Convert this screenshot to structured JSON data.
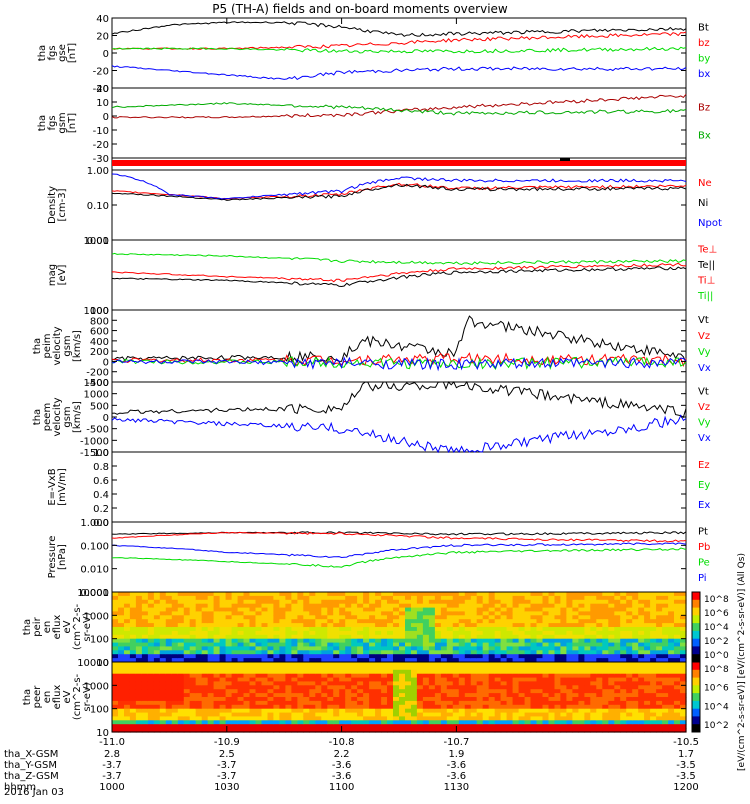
{
  "title": "P5 (TH-A) fields and on-board moments overview",
  "colors": {
    "black": "#000000",
    "red": "#ff0000",
    "green": "#00dd00",
    "blue": "#0000ff",
    "darkred": "#aa0000",
    "darkgreen": "#00aa00"
  },
  "time_axis": {
    "ticks": [
      "-11.0",
      "-10.9",
      "-10.8",
      "-10.7",
      "-10.5"
    ],
    "tick_values": [
      -11.0,
      -10.9,
      -10.8,
      -10.7,
      -10.5
    ],
    "range": [
      -11.0,
      -10.5
    ],
    "rows": [
      {
        "label": "tha_X-GSM",
        "values": [
          "2.8",
          "2.5",
          "2.2",
          "1.9",
          "1.7"
        ]
      },
      {
        "label": "tha_Y-GSM",
        "values": [
          "-3.7",
          "-3.7",
          "-3.6",
          "-3.6",
          "-3.5"
        ]
      },
      {
        "label": "tha_Z-GSM",
        "values": [
          "-3.7",
          "-3.7",
          "-3.6",
          "-3.6",
          "-3.5"
        ]
      },
      {
        "label": "hhmm",
        "values": [
          "1000",
          "1030",
          "1100",
          "1130",
          "1200"
        ]
      }
    ],
    "date": "2016 Jan 03"
  },
  "panels": [
    {
      "ylabel": [
        "tha",
        "fgs",
        "gse",
        "[nT]"
      ],
      "yticks": [
        "40",
        "20",
        "0",
        "-20",
        "-40"
      ],
      "legend": [
        {
          "t": "Bt",
          "c": "black"
        },
        {
          "t": "bz",
          "c": "red"
        },
        {
          "t": "by",
          "c": "green"
        },
        {
          "t": "bx",
          "c": "blue"
        }
      ]
    },
    {
      "ylabel": [
        "tha",
        "fgs",
        "gsm",
        "[nT]"
      ],
      "yticks": [
        "20",
        "10",
        "0",
        "-10",
        "-20",
        "-30"
      ],
      "legend": [
        {
          "t": "Bz",
          "c": "darkred"
        },
        {
          "t": "Bx",
          "c": "darkgreen"
        }
      ]
    },
    {
      "ylabel": [],
      "yticks": [],
      "legend": []
    },
    {
      "ylabel": [
        "Density",
        "[cm-3]"
      ],
      "yticks": [
        "1.00",
        "0.10",
        "0.01"
      ],
      "legend": [
        {
          "t": "Ne",
          "c": "red"
        },
        {
          "t": "Ni",
          "c": "black"
        },
        {
          "t": "Npot",
          "c": "blue"
        }
      ]
    },
    {
      "ylabel": [
        "mag",
        "[eV]"
      ],
      "yticks": [
        "1000",
        "100"
      ],
      "legend": [
        {
          "t": "Te⊥",
          "c": "red"
        },
        {
          "t": "Te||",
          "c": "black"
        },
        {
          "t": "Ti⊥",
          "c": "red"
        },
        {
          "t": "Ti||",
          "c": "green"
        }
      ]
    },
    {
      "ylabel": [
        "tha",
        "peim",
        "velocity",
        "gsm",
        "[km/s]"
      ],
      "yticks": [
        "1000",
        "800",
        "600",
        "400",
        "200",
        "0",
        "-200",
        "-400"
      ],
      "legend": [
        {
          "t": "Vt",
          "c": "black"
        },
        {
          "t": "Vz",
          "c": "red"
        },
        {
          "t": "Vy",
          "c": "green"
        },
        {
          "t": "Vx",
          "c": "blue"
        }
      ]
    },
    {
      "ylabel": [
        "tha",
        "peem",
        "velocity",
        "gsm",
        "[km/s]"
      ],
      "yticks": [
        "1500",
        "1000",
        "500",
        "0",
        "-500",
        "-1000",
        "-1500"
      ],
      "legend": [
        {
          "t": "Vt",
          "c": "black"
        },
        {
          "t": "Vz",
          "c": "red"
        },
        {
          "t": "Vy",
          "c": "green"
        },
        {
          "t": "Vx",
          "c": "blue"
        }
      ]
    },
    {
      "ylabel": [
        "E=-VxB",
        "[mV/m]"
      ],
      "yticks": [
        "1.0",
        "0.8",
        "0.6",
        "0.4",
        "0.2",
        "0.0"
      ],
      "legend": [
        {
          "t": "Ez",
          "c": "red"
        },
        {
          "t": "Ey",
          "c": "green"
        },
        {
          "t": "Ex",
          "c": "blue"
        }
      ]
    },
    {
      "ylabel": [
        "Pressure",
        "[nPa]"
      ],
      "yticks": [
        "1.000",
        "0.100",
        "0.010",
        "0.001"
      ],
      "legend": [
        {
          "t": "Pt",
          "c": "black"
        },
        {
          "t": "Pb",
          "c": "red"
        },
        {
          "t": "Pe",
          "c": "green"
        },
        {
          "t": "Pi",
          "c": "blue"
        }
      ]
    },
    {
      "ylabel": [
        "tha",
        "peir",
        "en",
        "eflux",
        "eV",
        "(cm^2-s-",
        "sr-eV)"
      ],
      "yticks": [
        "10000",
        "1000",
        "100",
        "10"
      ],
      "legend": []
    },
    {
      "ylabel": [
        "tha",
        "peer",
        "en",
        "eflux",
        "eV",
        "(cm^2-s-",
        "sr-eV)"
      ],
      "yticks": [
        "10000",
        "1000",
        "100",
        "10"
      ],
      "legend": []
    }
  ],
  "colorbars": [
    {
      "ticks": [
        "10^8",
        "10^6",
        "10^4",
        "10^2",
        "10^0"
      ]
    },
    {
      "ticks": [
        "10^8",
        "10^6",
        "10^4",
        "10^2"
      ]
    }
  ],
  "colorbar_label": "[eV/(cm^2-s-sr-eV)] [eV/(cm^2-s-sr-eV)] (All Qs)",
  "chart_data": {
    "type": "line",
    "title": "P5 (TH-A) fields and on-board moments overview",
    "x_range": [
      -11.0,
      -10.5
    ],
    "hhmm": [
      "1000",
      "1030",
      "1100",
      "1130",
      "1200"
    ],
    "panels": [
      {
        "name": "fgs gse",
        "ylim": [
          -40,
          40
        ],
        "series": [
          {
            "name": "Bt",
            "x": [
              -11.0,
              -10.95,
              -10.9,
              -10.85,
              -10.8,
              -10.75,
              -10.7,
              -10.6,
              -10.5
            ],
            "values": [
              22,
              32,
              35,
              35,
              30,
              20,
              22,
              25,
              28
            ]
          },
          {
            "name": "bz",
            "x": [
              -11.0,
              -10.9,
              -10.8,
              -10.7,
              -10.5
            ],
            "values": [
              5,
              5,
              8,
              15,
              22
            ]
          },
          {
            "name": "by",
            "x": [
              -11.0,
              -10.9,
              -10.8,
              -10.7,
              -10.5
            ],
            "values": [
              5,
              5,
              2,
              2,
              5
            ]
          },
          {
            "name": "bx",
            "x": [
              -11.0,
              -10.9,
              -10.85,
              -10.8,
              -10.7,
              -10.5
            ],
            "values": [
              -15,
              -25,
              -30,
              -22,
              -18,
              -18
            ]
          }
        ]
      },
      {
        "name": "fgs gsm",
        "ylim": [
          -35,
          20
        ],
        "series": [
          {
            "name": "Bz",
            "x": [
              -11.0,
              -10.9,
              -10.8,
              -10.7,
              -10.5
            ],
            "values": [
              -3,
              -3,
              -1,
              5,
              14
            ]
          },
          {
            "name": "Bx",
            "x": [
              -11.0,
              -10.9,
              -10.8,
              -10.7,
              -10.5
            ],
            "values": [
              5,
              8,
              5,
              0,
              2
            ]
          }
        ]
      },
      {
        "name": "Density",
        "ylim": [
          0.01,
          1.0
        ],
        "series": [
          {
            "name": "Ne",
            "x": [
              -11.0,
              -10.9,
              -10.8,
              -10.75,
              -10.7,
              -10.5
            ],
            "values": [
              0.25,
              0.15,
              0.2,
              0.4,
              0.3,
              0.35
            ]
          },
          {
            "name": "Ni",
            "x": [
              -11.0,
              -10.9,
              -10.8,
              -10.75,
              -10.7,
              -10.5
            ],
            "values": [
              0.22,
              0.14,
              0.18,
              0.38,
              0.28,
              0.3
            ]
          },
          {
            "name": "Npot",
            "x": [
              -11.0,
              -10.95,
              -10.9,
              -10.8,
              -10.75,
              -10.7,
              -10.5
            ],
            "values": [
              0.8,
              0.2,
              0.15,
              0.25,
              0.6,
              0.5,
              0.5
            ]
          }
        ]
      },
      {
        "name": "mag",
        "ylim": [
          100,
          10000
        ],
        "series": [
          {
            "name": "Te⊥",
            "x": [
              -11.0,
              -10.9,
              -10.8,
              -10.7,
              -10.5
            ],
            "values": [
              1200,
              900,
              700,
              1500,
              2000
            ]
          },
          {
            "name": "Te||",
            "x": [
              -11.0,
              -10.9,
              -10.8,
              -10.7,
              -10.5
            ],
            "values": [
              800,
              700,
              500,
              1200,
              1600
            ]
          },
          {
            "name": "Ti||",
            "x": [
              -11.0,
              -10.9,
              -10.8,
              -10.7,
              -10.5
            ],
            "values": [
              4000,
              3500,
              2500,
              2200,
              2500
            ]
          }
        ]
      },
      {
        "name": "peim velocity",
        "ylim": [
          -400,
          1000
        ],
        "series": [
          {
            "name": "Vt",
            "x": [
              -11.0,
              -10.8,
              -10.78,
              -10.7,
              -10.69,
              -10.5
            ],
            "values": [
              50,
              100,
              400,
              150,
              800,
              80
            ]
          },
          {
            "name": "Vz",
            "x": [
              -11.0,
              -10.8,
              -10.7,
              -10.5
            ],
            "values": [
              20,
              30,
              60,
              20
            ]
          },
          {
            "name": "Vy",
            "x": [
              -11.0,
              -10.8,
              -10.7,
              -10.5
            ],
            "values": [
              0,
              -20,
              -50,
              0
            ]
          },
          {
            "name": "Vx",
            "x": [
              -11.0,
              -10.8,
              -10.7,
              -10.5
            ],
            "values": [
              0,
              -30,
              -60,
              -10
            ]
          }
        ]
      },
      {
        "name": "peem velocity",
        "ylim": [
          -1500,
          1500
        ],
        "series": [
          {
            "name": "Vt",
            "x": [
              -11.0,
              -10.8,
              -10.78,
              -10.7,
              -10.5
            ],
            "values": [
              200,
              400,
              1300,
              1400,
              200
            ]
          },
          {
            "name": "Vx",
            "x": [
              -11.0,
              -10.8,
              -10.7,
              -10.5
            ],
            "values": [
              -100,
              -500,
              -1500,
              -100
            ]
          }
        ]
      },
      {
        "name": "E=-VxB",
        "ylim": [
          0,
          1.0
        ],
        "series": []
      },
      {
        "name": "Pressure",
        "ylim": [
          0.001,
          1.0
        ],
        "series": [
          {
            "name": "Pt",
            "x": [
              -11.0,
              -10.9,
              -10.8,
              -10.7,
              -10.5
            ],
            "values": [
              0.3,
              0.35,
              0.35,
              0.3,
              0.35
            ]
          },
          {
            "name": "Pb",
            "x": [
              -11.0,
              -10.9,
              -10.8,
              -10.7,
              -10.5
            ],
            "values": [
              0.2,
              0.35,
              0.32,
              0.2,
              0.15
            ]
          },
          {
            "name": "Pe",
            "x": [
              -11.0,
              -10.9,
              -10.8,
              -10.7,
              -10.5
            ],
            "values": [
              0.03,
              0.02,
              0.012,
              0.05,
              0.07
            ]
          },
          {
            "name": "Pi",
            "x": [
              -11.0,
              -10.9,
              -10.8,
              -10.7,
              -10.5
            ],
            "values": [
              0.1,
              0.05,
              0.03,
              0.1,
              0.12
            ]
          }
        ]
      }
    ]
  }
}
